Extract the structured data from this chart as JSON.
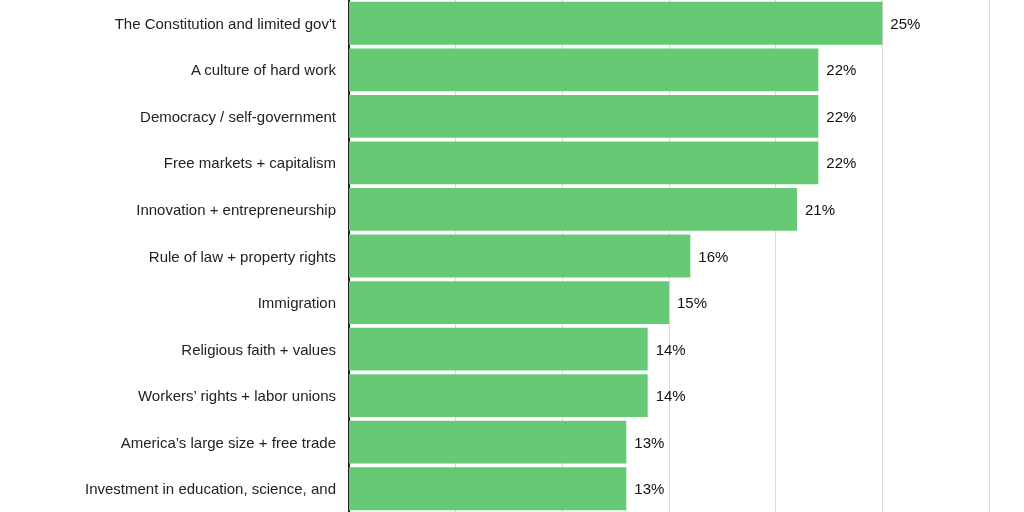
{
  "chart_data": {
    "type": "bar",
    "orientation": "horizontal",
    "categories": [
      "The Constitution and limited gov't",
      "A culture of hard work",
      "Democracy / self-government",
      "Free markets + capitalism",
      "Innovation + entrepreneurship",
      "Rule of law + property rights",
      "Immigration",
      "Religious faith + values",
      "Workers’ rights + labor unions",
      "America’s large size + free trade",
      "Investment in education, science, and"
    ],
    "values": [
      25,
      22,
      22,
      22,
      21,
      16,
      15,
      14,
      14,
      13,
      13
    ],
    "value_labels": [
      "25%",
      "22%",
      "22%",
      "22%",
      "21%",
      "16%",
      "15%",
      "14%",
      "14%",
      "13%",
      "13%"
    ],
    "color": "#66c974",
    "xlim": [
      0,
      30
    ],
    "xticks": [
      {
        "value": 0,
        "label": null
      },
      {
        "value": 5,
        "label": null
      },
      {
        "value": 10,
        "label": null
      },
      {
        "value": 15,
        "label": null
      },
      {
        "value": 20,
        "label": null
      },
      {
        "value": 25,
        "label": null
      },
      {
        "value": 30,
        "label": null
      }
    ],
    "grid": "x",
    "tick_labels": "y"
  }
}
